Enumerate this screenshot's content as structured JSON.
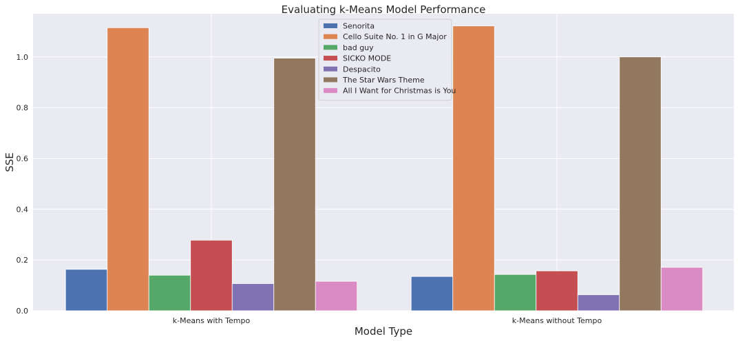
{
  "chart_data": {
    "type": "bar",
    "title": "Evaluating k-Means Model Performance",
    "xlabel": "Model Type",
    "ylabel": "SSE",
    "ylim": [
      0,
      1.17
    ],
    "yticks": [
      0.0,
      0.2,
      0.4,
      0.6,
      0.8,
      1.0
    ],
    "ytick_labels": [
      "0.0",
      "0.2",
      "0.4",
      "0.6",
      "0.8",
      "1.0"
    ],
    "grid": true,
    "legend_position": "top-center",
    "categories": [
      "k-Means with Tempo",
      "k-Means without Tempo"
    ],
    "series": [
      {
        "name": "Senorita",
        "color": "#4c72b0",
        "values": [
          0.163,
          0.135
        ]
      },
      {
        "name": "Cello Suite No. 1 in G Major",
        "color": "#dd8452",
        "values": [
          1.115,
          1.122
        ]
      },
      {
        "name": "bad guy",
        "color": "#55a868",
        "values": [
          0.14,
          0.143
        ]
      },
      {
        "name": "SICKO MODE",
        "color": "#c44e52",
        "values": [
          0.278,
          0.157
        ]
      },
      {
        "name": "Despacito",
        "color": "#8172b3",
        "values": [
          0.107,
          0.063
        ]
      },
      {
        "name": "The Star Wars Theme",
        "color": "#937860",
        "values": [
          0.995,
          1.0
        ]
      },
      {
        "name": "All I Want for Christmas is You",
        "color": "#da8bc3",
        "values": [
          0.116,
          0.171
        ]
      }
    ]
  }
}
